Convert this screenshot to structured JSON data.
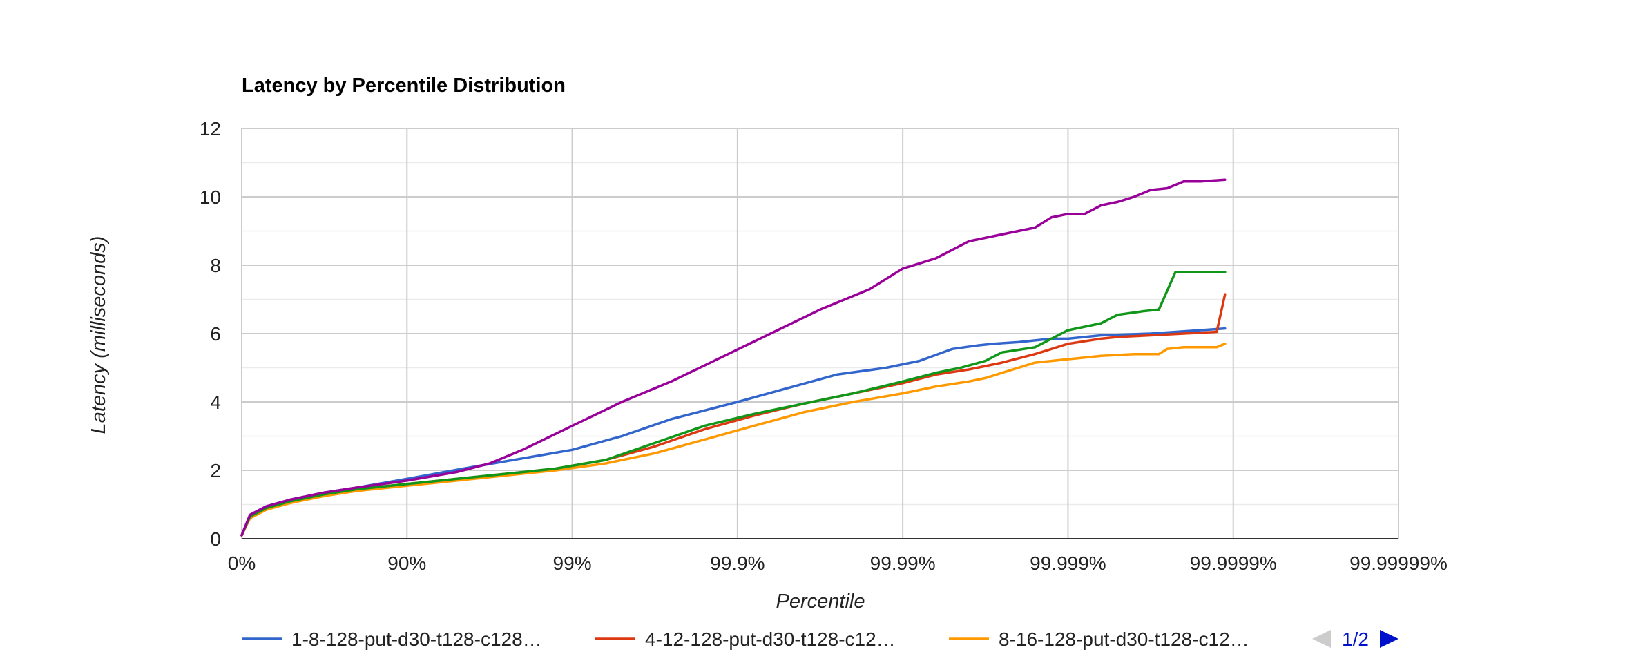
{
  "chart_data": {
    "type": "line",
    "title": "Latency by Percentile Distribution",
    "xlabel": "Percentile",
    "ylabel": "Latency (milliseconds)",
    "x_tick_labels": [
      "0%",
      "90%",
      "99%",
      "99.9%",
      "99.99%",
      "99.999%",
      "99.9999%",
      "99.99999%"
    ],
    "x_scale": "nines (log10 of 1/(1-percentile)); tick k = percentile 1-10^-k",
    "xlim_nines": [
      0,
      7
    ],
    "y_ticks": [
      "0",
      "2",
      "4",
      "6",
      "8",
      "10",
      "12"
    ],
    "ylim": [
      0,
      12
    ],
    "grid": true,
    "legend_position": "bottom",
    "series": [
      {
        "name": "1-8-128-put-d30-t128-c128…",
        "color": "#3366cc",
        "x_nines": [
          0,
          0.05,
          0.15,
          0.3,
          0.5,
          0.7,
          1.0,
          1.4,
          1.7,
          2.0,
          2.3,
          2.6,
          3.0,
          3.3,
          3.6,
          3.9,
          4.1,
          4.3,
          4.45,
          4.55,
          4.7,
          4.9,
          5.0,
          5.2,
          5.5,
          5.8,
          5.95
        ],
        "y": [
          0.1,
          0.7,
          0.95,
          1.15,
          1.35,
          1.5,
          1.75,
          2.1,
          2.35,
          2.6,
          3.0,
          3.5,
          4.0,
          4.4,
          4.8,
          5.0,
          5.2,
          5.55,
          5.65,
          5.7,
          5.75,
          5.85,
          5.85,
          5.95,
          6.0,
          6.1,
          6.15
        ]
      },
      {
        "name": "4-12-128-put-d30-t128-c12…",
        "color": "#dc3912",
        "x_nines": [
          0,
          0.05,
          0.15,
          0.3,
          0.5,
          0.7,
          1.0,
          1.3,
          1.6,
          1.9,
          2.2,
          2.5,
          2.8,
          3.1,
          3.4,
          3.7,
          4.0,
          4.2,
          4.4,
          4.6,
          4.8,
          4.9,
          5.0,
          5.2,
          5.3,
          5.5,
          5.7,
          5.9,
          5.95
        ],
        "y": [
          0.1,
          0.65,
          0.9,
          1.1,
          1.3,
          1.45,
          1.6,
          1.75,
          1.9,
          2.05,
          2.3,
          2.7,
          3.2,
          3.6,
          3.95,
          4.25,
          4.55,
          4.8,
          4.95,
          5.15,
          5.4,
          5.55,
          5.7,
          5.85,
          5.9,
          5.95,
          6.0,
          6.05,
          7.15
        ]
      },
      {
        "name": "8-16-128-put-d30-t128-c12…",
        "color": "#ff9900",
        "x_nines": [
          0,
          0.05,
          0.15,
          0.3,
          0.5,
          0.7,
          1.0,
          1.3,
          1.6,
          1.9,
          2.2,
          2.5,
          2.8,
          3.1,
          3.4,
          3.7,
          4.0,
          4.2,
          4.4,
          4.5,
          4.6,
          4.8,
          5.0,
          5.1,
          5.2,
          5.4,
          5.55,
          5.6,
          5.7,
          5.9,
          5.95
        ],
        "y": [
          0.1,
          0.6,
          0.85,
          1.05,
          1.25,
          1.4,
          1.55,
          1.7,
          1.85,
          2.0,
          2.2,
          2.5,
          2.9,
          3.3,
          3.7,
          4.0,
          4.25,
          4.45,
          4.6,
          4.7,
          4.85,
          5.15,
          5.25,
          5.3,
          5.35,
          5.4,
          5.4,
          5.55,
          5.6,
          5.6,
          5.7
        ]
      },
      {
        "name": "",
        "color": "#109618",
        "x_nines": [
          0,
          0.05,
          0.15,
          0.3,
          0.5,
          0.7,
          1.0,
          1.3,
          1.6,
          1.9,
          2.2,
          2.5,
          2.8,
          3.1,
          3.4,
          3.7,
          4.0,
          4.2,
          4.35,
          4.5,
          4.6,
          4.8,
          4.9,
          5.0,
          5.2,
          5.3,
          5.45,
          5.55,
          5.65,
          5.75,
          5.9,
          5.95
        ],
        "y": [
          0.1,
          0.65,
          0.9,
          1.1,
          1.3,
          1.45,
          1.6,
          1.75,
          1.9,
          2.05,
          2.3,
          2.8,
          3.3,
          3.65,
          3.95,
          4.25,
          4.6,
          4.85,
          5.0,
          5.2,
          5.45,
          5.6,
          5.85,
          6.1,
          6.3,
          6.55,
          6.65,
          6.7,
          7.8,
          7.8,
          7.8,
          7.8
        ]
      },
      {
        "name": "",
        "color": "#990099",
        "x_nines": [
          0,
          0.05,
          0.15,
          0.3,
          0.5,
          0.7,
          1.0,
          1.3,
          1.5,
          1.7,
          2.0,
          2.3,
          2.6,
          2.9,
          3.2,
          3.5,
          3.8,
          4.0,
          4.2,
          4.4,
          4.6,
          4.8,
          4.9,
          5.0,
          5.1,
          5.2,
          5.3,
          5.4,
          5.5,
          5.6,
          5.7,
          5.8,
          5.95
        ],
        "y": [
          0.1,
          0.7,
          0.95,
          1.15,
          1.35,
          1.5,
          1.7,
          1.95,
          2.2,
          2.6,
          3.3,
          4.0,
          4.6,
          5.3,
          6.0,
          6.7,
          7.3,
          7.9,
          8.2,
          8.7,
          8.9,
          9.1,
          9.4,
          9.5,
          9.5,
          9.75,
          9.85,
          10.0,
          10.2,
          10.25,
          10.45,
          10.45,
          10.5
        ]
      }
    ]
  },
  "legend": {
    "page_label": "1/2"
  }
}
